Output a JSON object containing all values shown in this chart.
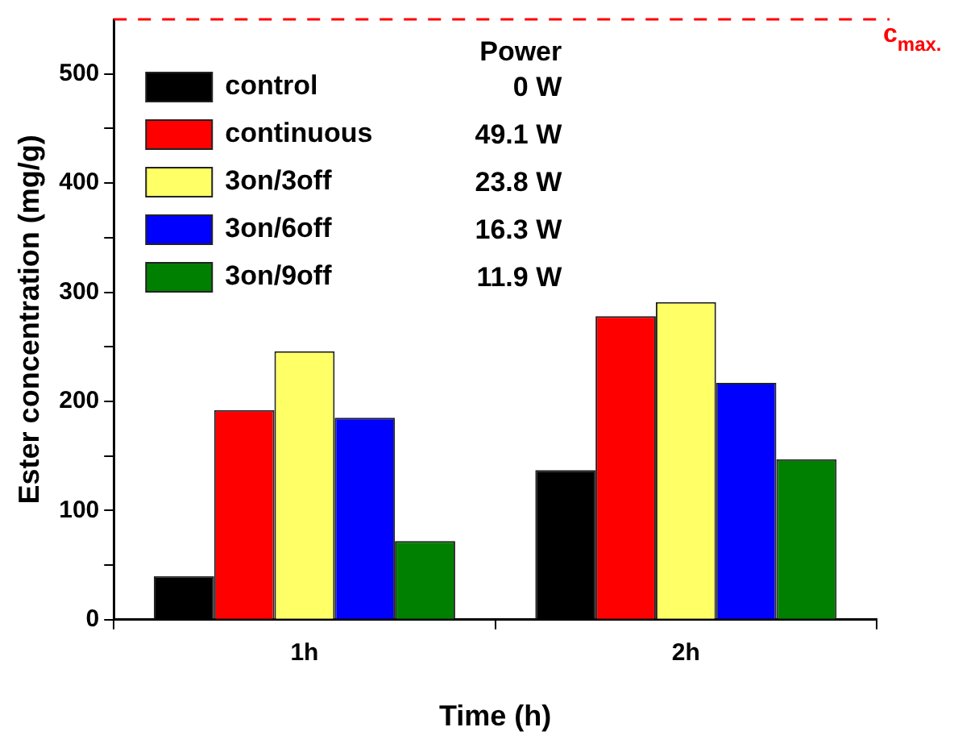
{
  "chart_data": {
    "type": "bar",
    "xlabel": "Time (h)",
    "ylabel": "Ester concentration (mg/g)",
    "categories": [
      "1h",
      "2h"
    ],
    "series": [
      {
        "name": "control",
        "color": "#000000",
        "values": [
          40,
          137
        ]
      },
      {
        "name": "continuous",
        "color": "#ff0000",
        "values": [
          192,
          278
        ]
      },
      {
        "name": "3on/3off",
        "color": "#ffff66",
        "values": [
          246,
          291
        ]
      },
      {
        "name": "3on/6off",
        "color": "#0000ff",
        "values": [
          185,
          217
        ]
      },
      {
        "name": "3on/9off",
        "color": "#008000",
        "values": [
          72,
          147
        ]
      }
    ],
    "ylim": [
      0,
      550
    ],
    "yticks": [
      0,
      {
        "value": 50,
        "label": null
      },
      100,
      {
        "value": 150,
        "label": null
      },
      200,
      {
        "value": 250,
        "label": null
      },
      300,
      {
        "value": 350,
        "label": null
      },
      400,
      {
        "value": 450,
        "label": null
      },
      500
    ],
    "ref_lines": [
      {
        "axis": "y",
        "value": 550,
        "label": "c$_{max.}$",
        "color": "#ff0000",
        "line_style": "dashed"
      }
    ],
    "annotations": [
      "Power",
      "0 W",
      "49.1 W",
      "23.8 W",
      "16.3 W",
      "11.9 W"
    ],
    "legend": "top left",
    "grid": false
  }
}
